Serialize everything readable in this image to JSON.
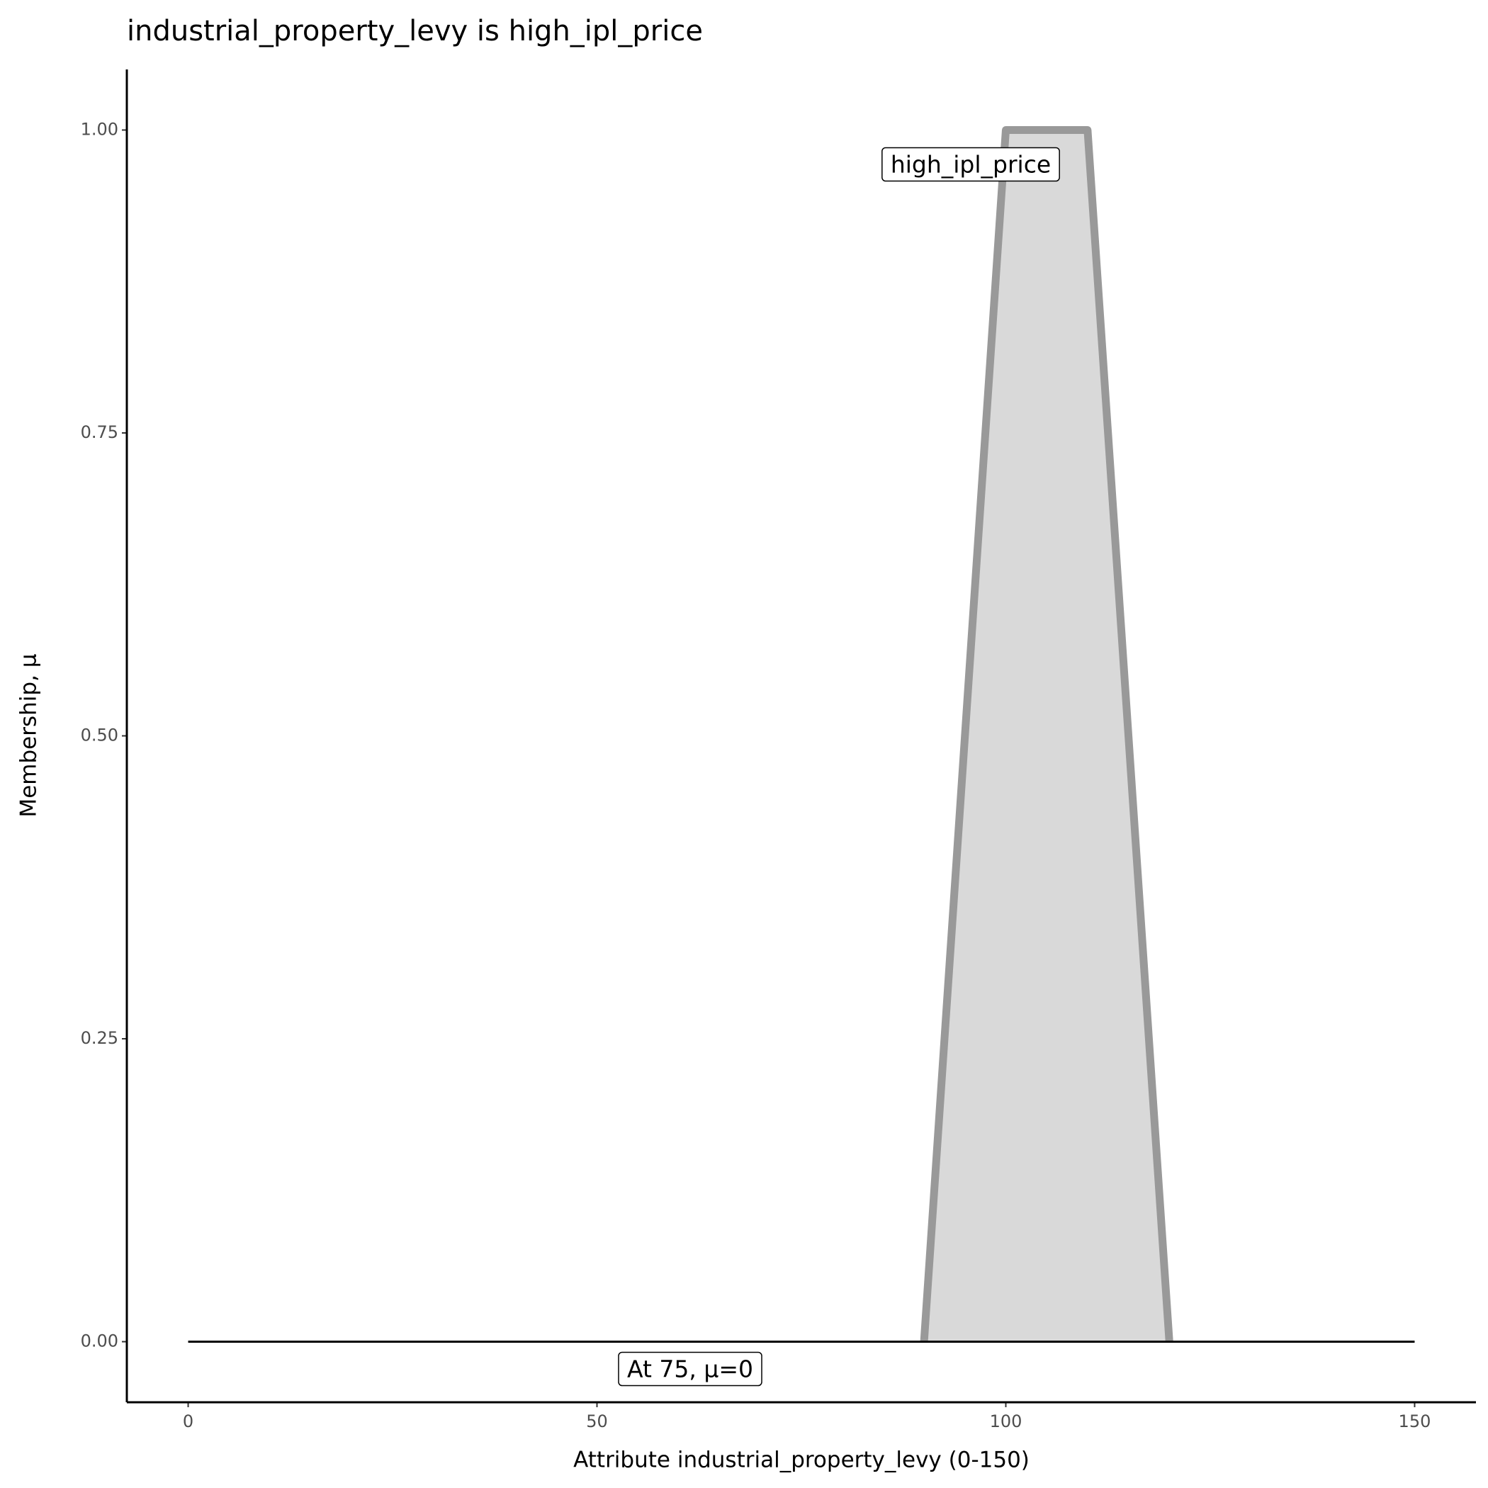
{
  "chart_data": {
    "type": "area",
    "title": "industrial_property_levy is high_ipl_price",
    "x_label": "Attribute industrial_property_levy (0-150)",
    "y_label": "Membership, μ",
    "series": [
      {
        "name": "high_ipl_price",
        "x": [
          90,
          100,
          110,
          120
        ],
        "values": [
          0,
          1,
          1,
          0
        ],
        "color": "#999999",
        "fill": "#d9d9d9"
      }
    ],
    "baseline": {
      "x": [
        0,
        150
      ],
      "values": [
        0,
        0
      ],
      "color": "#000000"
    },
    "annotations": [
      "At 75, μ=0"
    ],
    "xlim": [
      -7.5,
      157.5
    ],
    "ylim": [
      -0.05,
      1.05
    ],
    "xticks": [
      0,
      50,
      100,
      150
    ],
    "yticks": [
      {
        "value": 0,
        "label": "0.00"
      },
      {
        "value": 0.25,
        "label": "0.25"
      },
      {
        "value": 0.5,
        "label": "0.50"
      },
      {
        "value": 0.75,
        "label": "0.75"
      },
      {
        "value": 1,
        "label": "1.00"
      }
    ]
  }
}
